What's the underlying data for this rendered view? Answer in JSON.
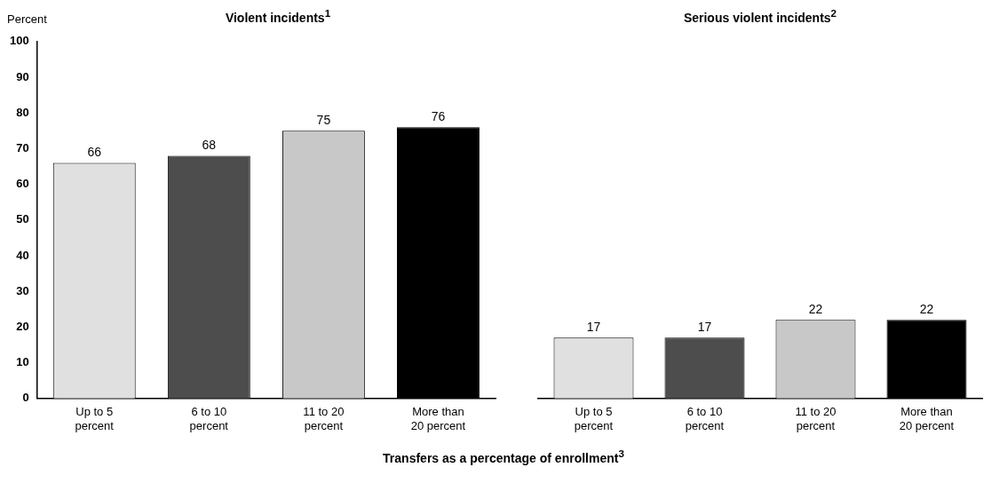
{
  "chart_data": [
    {
      "type": "bar",
      "title": "Violent incidents$^{1}$",
      "ylabel": "Percent",
      "xlabel": "Transfers as a percentage of enrollment$^{3}$",
      "categories": [
        "Up to 5 percent",
        "6 to 10 percent",
        "11 to 20 percent",
        "More than 20 percent"
      ],
      "values": [
        66,
        68,
        75,
        76
      ],
      "colors": [
        "#e0e0e0",
        "#4d4d4d",
        "#c8c8c8",
        "#000000"
      ],
      "ylim": [
        0,
        100
      ],
      "yticks": [
        0,
        10,
        20,
        30,
        40,
        50,
        60,
        70,
        80,
        90,
        100
      ],
      "grid": false,
      "data_labels": true
    },
    {
      "type": "bar",
      "title": "Serious violent incidents$^{2}$",
      "categories": [
        "Up to 5 percent",
        "6 to 10 percent",
        "11 to 20 percent",
        "More than 20 percent"
      ],
      "values": [
        17,
        17,
        22,
        22
      ],
      "colors": [
        "#e0e0e0",
        "#4d4d4d",
        "#c8c8c8",
        "#000000"
      ],
      "ylim": [
        0,
        100
      ],
      "yticks": [
        0,
        10,
        20,
        30,
        40,
        50,
        60,
        70,
        80,
        90,
        100
      ],
      "grid": false,
      "data_labels": true,
      "tick_labels": "x"
    }
  ]
}
